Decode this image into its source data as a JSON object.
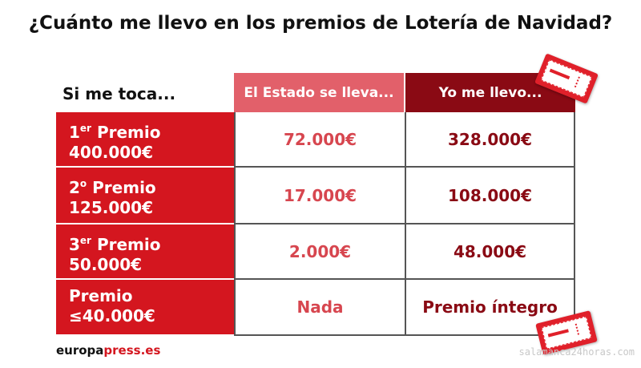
{
  "title": "¿Cuánto me llevo en los premios de Lotería de Navidad?",
  "row_header": "Si me toca...",
  "columns": {
    "state": "El Estado se lleva...",
    "me": "Yo me llevo..."
  },
  "rows": [
    {
      "ord": "1",
      "sup": "er",
      "name": "Premio",
      "amount": "400.000€",
      "state": "72.000€",
      "me": "328.000€"
    },
    {
      "ord": "2",
      "sup": "o",
      "name": "Premio",
      "amount": "125.000€",
      "state": "17.000€",
      "me": "108.000€"
    },
    {
      "ord": "3",
      "sup": "er",
      "name": "Premio",
      "amount": "50.000€",
      "state": "2.000€",
      "me": "48.000€"
    },
    {
      "ord": "",
      "sup": "",
      "name": "Premio",
      "amount": "≤40.000€",
      "state": "Nada",
      "me": "Premio íntegro"
    }
  ],
  "brand": {
    "part1": "europa",
    "part2": "press.es"
  },
  "watermark": "salamanca24horas.com",
  "colors": {
    "primary_red": "#d4161f",
    "dark_red": "#8a0a14",
    "light_red": "#e2606a"
  }
}
